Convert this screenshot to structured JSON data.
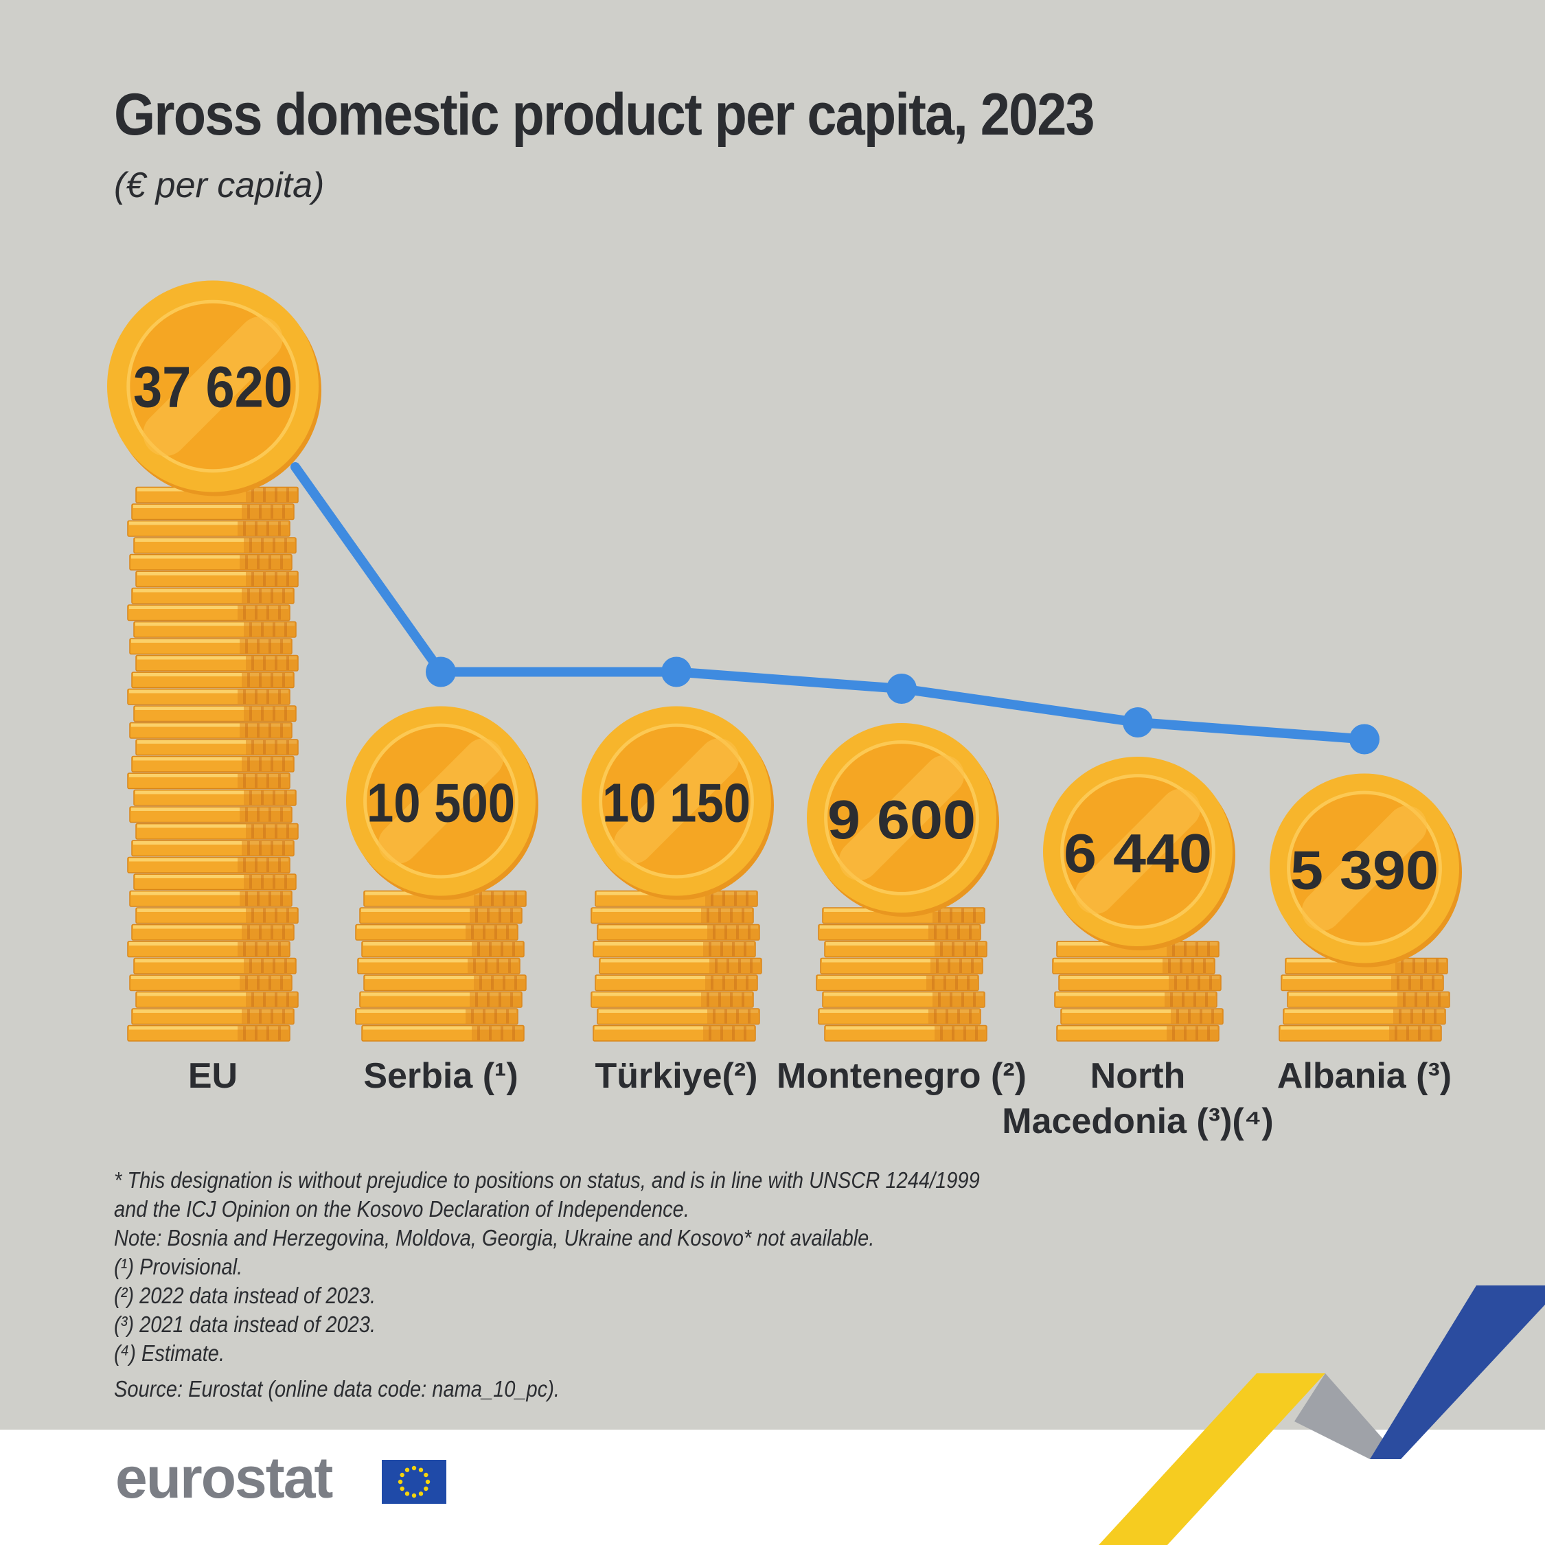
{
  "chart_data": {
    "type": "bar",
    "title": "Gross domestic product per capita, 2023",
    "subtitle": "(€ per capita)",
    "unit": "€ per capita",
    "categories": [
      "EU",
      "Serbia (¹)",
      "Türkiye(²)",
      "Montenegro (²)",
      "North Macedonia (³)(⁴)",
      "Albania (³)"
    ],
    "values": [
      37620,
      10500,
      10150,
      9600,
      6440,
      5390
    ],
    "value_labels": [
      "37 620",
      "10 500",
      "10 150",
      "9 600",
      "6 440",
      "5 390"
    ],
    "overlay_line": true,
    "grid": false,
    "legend": "none"
  },
  "category_lines": [
    [
      "EU"
    ],
    [
      "Serbia (¹)"
    ],
    [
      "Türkiye(²)"
    ],
    [
      "Montenegro (²)"
    ],
    [
      "North",
      "Macedonia (³)(⁴)"
    ],
    [
      "Albania (³)"
    ]
  ],
  "notes": [
    "* This designation is without prejudice to positions on status, and is in line with UNSCR 1244/1999",
    "and the ICJ Opinion on the Kosovo Declaration of Independence.",
    "Note: Bosnia and Herzegovina, Moldova, Georgia, Ukraine and Kosovo* not available.",
    "(¹) Provisional.",
    "(²) 2022 data instead of 2023.",
    "(³) 2021 data instead of 2023.",
    "(⁴) Estimate."
  ],
  "source": "Source: Eurostat (online data code: nama_10_pc).",
  "logo": "eurostat",
  "colors": {
    "background": "#cfcfca",
    "coin": "#f7b52c",
    "coin_inner": "#f5a623",
    "coin_stack": "#f4a82a",
    "line": "#3f8be0",
    "text": "#2b2d31",
    "footer_logo": "#7b7e85",
    "eu_blue": "#1f4aa8",
    "eu_yellow": "#f6d40d"
  }
}
